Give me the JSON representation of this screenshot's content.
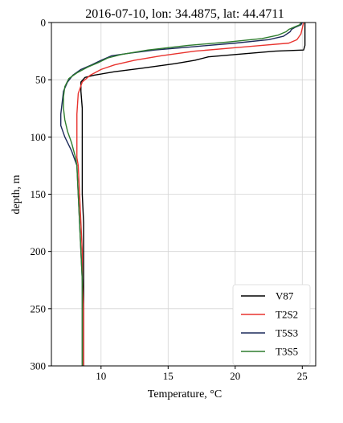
{
  "chart_data": {
    "type": "line",
    "title": "2016-07-10, lon: 34.4875,  lat: 44.4711",
    "xlabel": "Temperature, °C",
    "ylabel": "depth, m",
    "xlim": [
      6.3,
      26.0
    ],
    "ylim": [
      0,
      300
    ],
    "y_inverted": true,
    "x_ticks": [
      10,
      15,
      20,
      25
    ],
    "y_ticks": [
      0,
      50,
      100,
      150,
      200,
      250,
      300
    ],
    "grid": true,
    "legend_position": "lower-right",
    "series": [
      {
        "name": "V87",
        "color": "#000000",
        "points": [
          [
            25.2,
            0
          ],
          [
            25.2,
            5
          ],
          [
            25.2,
            10
          ],
          [
            25.2,
            15
          ],
          [
            25.2,
            20
          ],
          [
            25.1,
            24
          ],
          [
            23.0,
            25
          ],
          [
            20.0,
            28
          ],
          [
            18.0,
            30
          ],
          [
            17.0,
            33
          ],
          [
            15.5,
            36
          ],
          [
            13.0,
            40
          ],
          [
            11.0,
            43
          ],
          [
            9.5,
            46
          ],
          [
            8.8,
            48
          ],
          [
            8.5,
            52
          ],
          [
            8.5,
            60
          ],
          [
            8.6,
            75
          ],
          [
            8.6,
            90
          ],
          [
            8.6,
            100
          ],
          [
            8.6,
            125
          ],
          [
            8.6,
            150
          ],
          [
            8.7,
            175
          ],
          [
            8.7,
            200
          ],
          [
            8.7,
            225
          ],
          [
            8.7,
            250
          ],
          [
            8.7,
            275
          ],
          [
            8.7,
            300
          ]
        ]
      },
      {
        "name": "T2S2",
        "color": "#e8332e",
        "points": [
          [
            25.1,
            0
          ],
          [
            25.0,
            5
          ],
          [
            24.9,
            10
          ],
          [
            24.6,
            15
          ],
          [
            24.0,
            18
          ],
          [
            22.0,
            20
          ],
          [
            20.0,
            22
          ],
          [
            17.0,
            25
          ],
          [
            14.5,
            29
          ],
          [
            12.5,
            33
          ],
          [
            11.0,
            37
          ],
          [
            10.0,
            41
          ],
          [
            9.2,
            46
          ],
          [
            8.6,
            52
          ],
          [
            8.3,
            62
          ],
          [
            8.2,
            80
          ],
          [
            8.2,
            100
          ],
          [
            8.2,
            118
          ],
          [
            8.3,
            125
          ],
          [
            8.4,
            150
          ],
          [
            8.5,
            175
          ],
          [
            8.6,
            200
          ],
          [
            8.6,
            225
          ],
          [
            8.7,
            250
          ],
          [
            8.7,
            275
          ],
          [
            8.7,
            300
          ]
        ]
      },
      {
        "name": "T5S3",
        "color": "#1c2a5a",
        "points": [
          [
            25.0,
            0
          ],
          [
            24.9,
            2
          ],
          [
            24.5,
            4
          ],
          [
            24.2,
            6
          ],
          [
            24.1,
            8
          ],
          [
            23.6,
            12
          ],
          [
            22.5,
            15
          ],
          [
            20.0,
            18
          ],
          [
            17.0,
            21
          ],
          [
            14.0,
            24
          ],
          [
            12.0,
            27
          ],
          [
            10.8,
            29
          ],
          [
            10.0,
            33
          ],
          [
            9.3,
            37
          ],
          [
            8.5,
            41
          ],
          [
            7.9,
            46
          ],
          [
            7.5,
            52
          ],
          [
            7.2,
            60
          ],
          [
            7.1,
            70
          ],
          [
            7.0,
            80
          ],
          [
            7.0,
            90
          ],
          [
            7.3,
            100
          ],
          [
            7.8,
            112
          ],
          [
            8.2,
            125
          ],
          [
            8.3,
            150
          ],
          [
            8.4,
            175
          ],
          [
            8.5,
            200
          ],
          [
            8.6,
            225
          ],
          [
            8.6,
            250
          ],
          [
            8.6,
            275
          ],
          [
            8.6,
            300
          ]
        ]
      },
      {
        "name": "T3S5",
        "color": "#2e7d2e",
        "points": [
          [
            24.9,
            0
          ],
          [
            24.8,
            2
          ],
          [
            24.4,
            4
          ],
          [
            24.0,
            6
          ],
          [
            23.8,
            8
          ],
          [
            23.2,
            11
          ],
          [
            22.0,
            14
          ],
          [
            19.5,
            17
          ],
          [
            16.5,
            20
          ],
          [
            13.5,
            24
          ],
          [
            11.5,
            28
          ],
          [
            10.5,
            31
          ],
          [
            9.8,
            35
          ],
          [
            9.0,
            39
          ],
          [
            8.2,
            44
          ],
          [
            7.6,
            49
          ],
          [
            7.3,
            56
          ],
          [
            7.2,
            65
          ],
          [
            7.2,
            75
          ],
          [
            7.3,
            85
          ],
          [
            7.5,
            95
          ],
          [
            7.8,
            105
          ],
          [
            8.1,
            118
          ],
          [
            8.2,
            125
          ],
          [
            8.3,
            150
          ],
          [
            8.4,
            175
          ],
          [
            8.5,
            200
          ],
          [
            8.6,
            225
          ],
          [
            8.6,
            250
          ],
          [
            8.6,
            275
          ],
          [
            8.6,
            300
          ]
        ]
      }
    ]
  }
}
